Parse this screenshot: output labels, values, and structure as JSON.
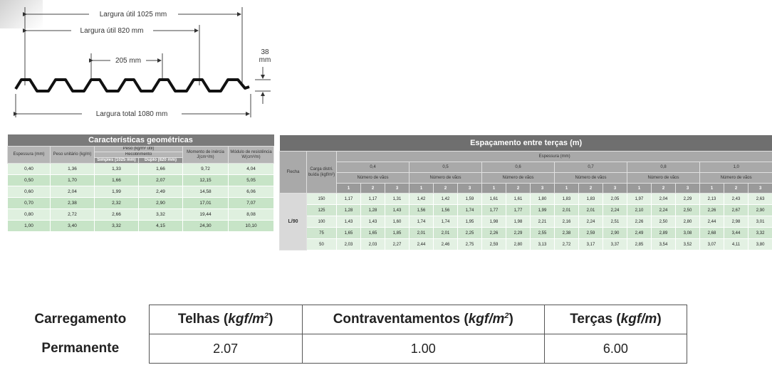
{
  "profile": {
    "dim_useful_1025": "Largura útil 1025 mm",
    "dim_useful_820": "Largura útil 820 mm",
    "dim_pitch": "205 mm",
    "dim_height_value": "38",
    "dim_height_unit": "mm",
    "dim_total": "Largura total 1080 mm"
  },
  "geo": {
    "title": "Características geométricas",
    "h_espessura": "Espessura (mm)",
    "h_peso": "Peso unitário (kg/m)",
    "h_peso_rec": "Peso (kg/m² útil)",
    "h_recobrimento": "Recobrimento",
    "h_simples": "Simples (1025 mm)",
    "h_duplo": "Duplo (820 mm)",
    "h_momento": "Momento de inércia J(cm⁴/m)",
    "h_modulo": "Módulo de resistência W(cm³/m)",
    "rows": [
      [
        "0,40",
        "1,36",
        "1,33",
        "1,66",
        "9,72",
        "4,04"
      ],
      [
        "0,50",
        "1,70",
        "1,66",
        "2,07",
        "12,15",
        "5,05"
      ],
      [
        "0,60",
        "2,04",
        "1,99",
        "2,49",
        "14,58",
        "6,06"
      ],
      [
        "0,70",
        "2,38",
        "2,32",
        "2,90",
        "17,01",
        "7,07"
      ],
      [
        "0,80",
        "2,72",
        "2,66",
        "3,32",
        "19,44",
        "8,08"
      ],
      [
        "1,00",
        "3,40",
        "3,32",
        "4,15",
        "24,30",
        "10,10"
      ]
    ]
  },
  "esp": {
    "title": "Espaçamento entre terças (m)",
    "h_flecha": "Flecha",
    "h_carga": "Carga distri. buída (kgf/m²)",
    "h_espessura": "Espessura (mm)",
    "thicknesses": [
      "0,4",
      "0,5",
      "0,6",
      "0,7",
      "0,8",
      "1,0"
    ],
    "h_vaos": "Número de vãos",
    "spans": [
      "1",
      "2",
      "3"
    ],
    "flecha_value": "L/90",
    "rows": [
      {
        "load": "150",
        "values": [
          "1,17",
          "1,17",
          "1,31",
          "1,42",
          "1,42",
          "1,59",
          "1,61",
          "1,61",
          "1,80",
          "1,83",
          "1,83",
          "2,05",
          "1,97",
          "2,04",
          "2,29",
          "2,13",
          "2,43",
          "2,63"
        ]
      },
      {
        "load": "125",
        "values": [
          "1,28",
          "1,28",
          "1,43",
          "1,56",
          "1,56",
          "1,74",
          "1,77",
          "1,77",
          "1,99",
          "2,01",
          "2,01",
          "2,24",
          "2,10",
          "2,24",
          "2,50",
          "2,26",
          "2,67",
          "2,90"
        ]
      },
      {
        "load": "100",
        "values": [
          "1,43",
          "1,43",
          "1,60",
          "1,74",
          "1,74",
          "1,95",
          "1,98",
          "1,98",
          "2,21",
          "2,16",
          "2,24",
          "2,51",
          "2,26",
          "2,50",
          "2,80",
          "2,44",
          "2,98",
          "3,01"
        ]
      },
      {
        "load": "75",
        "values": [
          "1,65",
          "1,65",
          "1,85",
          "2,01",
          "2,01",
          "2,25",
          "2,26",
          "2,29",
          "2,55",
          "2,38",
          "2,59",
          "2,90",
          "2,49",
          "2,89",
          "3,08",
          "2,68",
          "3,44",
          "3,32"
        ]
      },
      {
        "load": "50",
        "values": [
          "2,03",
          "2,03",
          "2,27",
          "2,44",
          "2,46",
          "2,75",
          "2,59",
          "2,80",
          "3,13",
          "2,72",
          "3,17",
          "3,37",
          "2,85",
          "3,54",
          "3,52",
          "3,07",
          "4,11",
          "3,80"
        ]
      }
    ]
  },
  "loads": {
    "row_label_1": "Carregamento",
    "row_label_2": "Permanente",
    "telhas_label": "Telhas (",
    "contrav_label": "Contraventamentos (",
    "tercas_label": "Terças (",
    "unit_area_base": "kgf/m",
    "unit_area_exp": "2",
    "unit_linear": "kgf/m",
    "close_paren": ")",
    "telhas_value": "2.07",
    "contrav_value": "1.00",
    "tercas_value": "6.00"
  }
}
